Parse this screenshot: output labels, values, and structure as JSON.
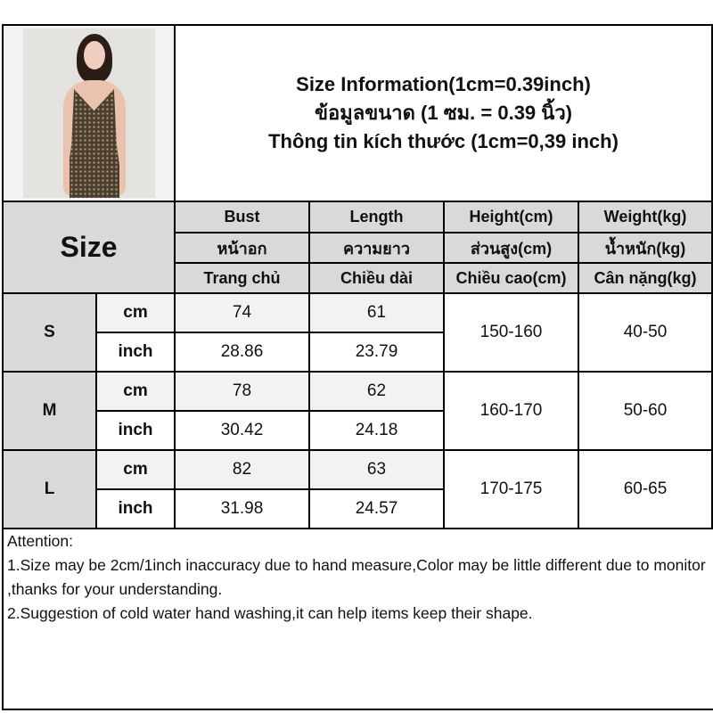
{
  "title_lines": [
    "Size Information(1cm=0.39inch)",
    "ข้อมูลขนาด (1 ซม. = 0.39 นิ้ว)",
    "Thông tin kích thước (1cm=0,39 inch)"
  ],
  "size_header": "Size",
  "columns": [
    {
      "en": "Bust",
      "th": "หน้าอก",
      "vi": "Trang chủ"
    },
    {
      "en": "Length",
      "th": "ความยาว",
      "vi": "Chiều dài"
    },
    {
      "en": "Height(cm)",
      "th": "ส่วนสูง(cm)",
      "vi": "Chiều cao(cm)"
    },
    {
      "en": "Weight(kg)",
      "th": "น้ำหนัก(kg)",
      "vi": "Cân nặng(kg)"
    }
  ],
  "rows": [
    {
      "size": "S",
      "cm_label": "cm",
      "inch_label": "inch",
      "bust_cm": "74",
      "length_cm": "61",
      "bust_inch": "28.86",
      "length_inch": "23.79",
      "height": "150-160",
      "weight": "40-50"
    },
    {
      "size": "M",
      "cm_label": "cm",
      "inch_label": "inch",
      "bust_cm": "78",
      "length_cm": "62",
      "bust_inch": "30.42",
      "length_inch": "24.18",
      "height": "160-170",
      "weight": "50-60"
    },
    {
      "size": "L",
      "cm_label": "cm",
      "inch_label": "inch",
      "bust_cm": "82",
      "length_cm": "63",
      "bust_inch": "31.98",
      "length_inch": "24.57",
      "height": "170-175",
      "weight": "60-65"
    }
  ],
  "attention": {
    "heading": "Attention:",
    "lines": [
      "1.Size may be 2cm/1inch inaccuracy due to hand measure,Color may be little different due to monitor ,thanks for your understanding.",
      "2.Suggestion of cold water hand washing,it can help items keep their shape."
    ]
  }
}
